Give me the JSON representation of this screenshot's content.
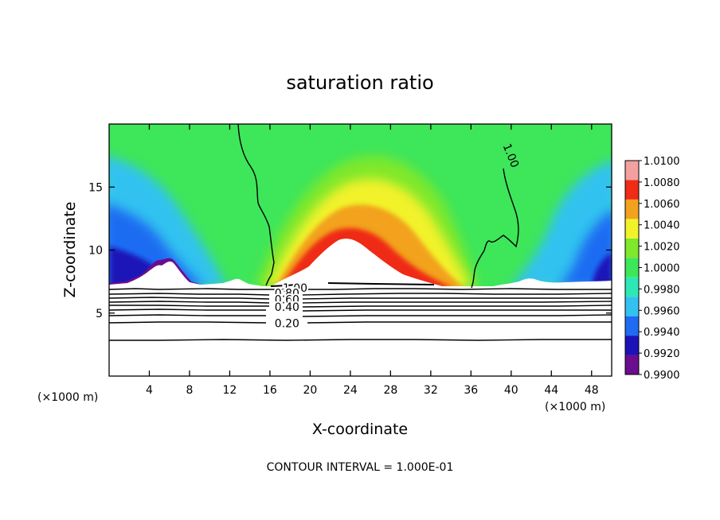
{
  "chart_data": {
    "type": "heatmap",
    "title": "saturation ratio",
    "xlabel": "X-coordinate",
    "ylabel": "Z-coordinate",
    "x_unit_left": "(×1000 m)",
    "x_unit_right": "(×1000 m)",
    "xlim": [
      0,
      50
    ],
    "ylim": [
      0,
      20
    ],
    "x_ticks": [
      4,
      8,
      12,
      16,
      20,
      24,
      28,
      32,
      36,
      40,
      44,
      48
    ],
    "y_ticks": [
      5,
      10,
      15
    ],
    "footer": "CONTOUR INTERVAL = 1.000E-01",
    "colorbar": {
      "levels": [
        0.99,
        0.992,
        0.994,
        0.996,
        0.998,
        1.0,
        1.002,
        1.004,
        1.006,
        1.008,
        1.01
      ],
      "tick_labels": [
        "0.9900",
        "0.9920",
        "0.9940",
        "0.9960",
        "0.9980",
        "1.0000",
        "1.0020",
        "1.0040",
        "1.0060",
        "1.0080",
        "1.0100"
      ],
      "colors": [
        "#6b0d8f",
        "#1c12b8",
        "#1f6cf2",
        "#33c2f0",
        "#2de8b4",
        "#3ee65a",
        "#7fe82a",
        "#f2f22a",
        "#f2a21c",
        "#ef2c16",
        "#f2a0a0"
      ]
    },
    "contour_labels": [
      {
        "label": "1.00",
        "x": 40.0,
        "z": 17.5
      },
      {
        "label": "1.00",
        "x": 18.5,
        "z": 7.0
      },
      {
        "label": "0.80",
        "x": 17.7,
        "z": 6.6
      },
      {
        "label": "0.60",
        "x": 17.7,
        "z": 6.1
      },
      {
        "label": "0.40",
        "x": 17.7,
        "z": 5.5
      },
      {
        "label": "0.20",
        "x": 17.7,
        "z": 4.2
      }
    ]
  }
}
